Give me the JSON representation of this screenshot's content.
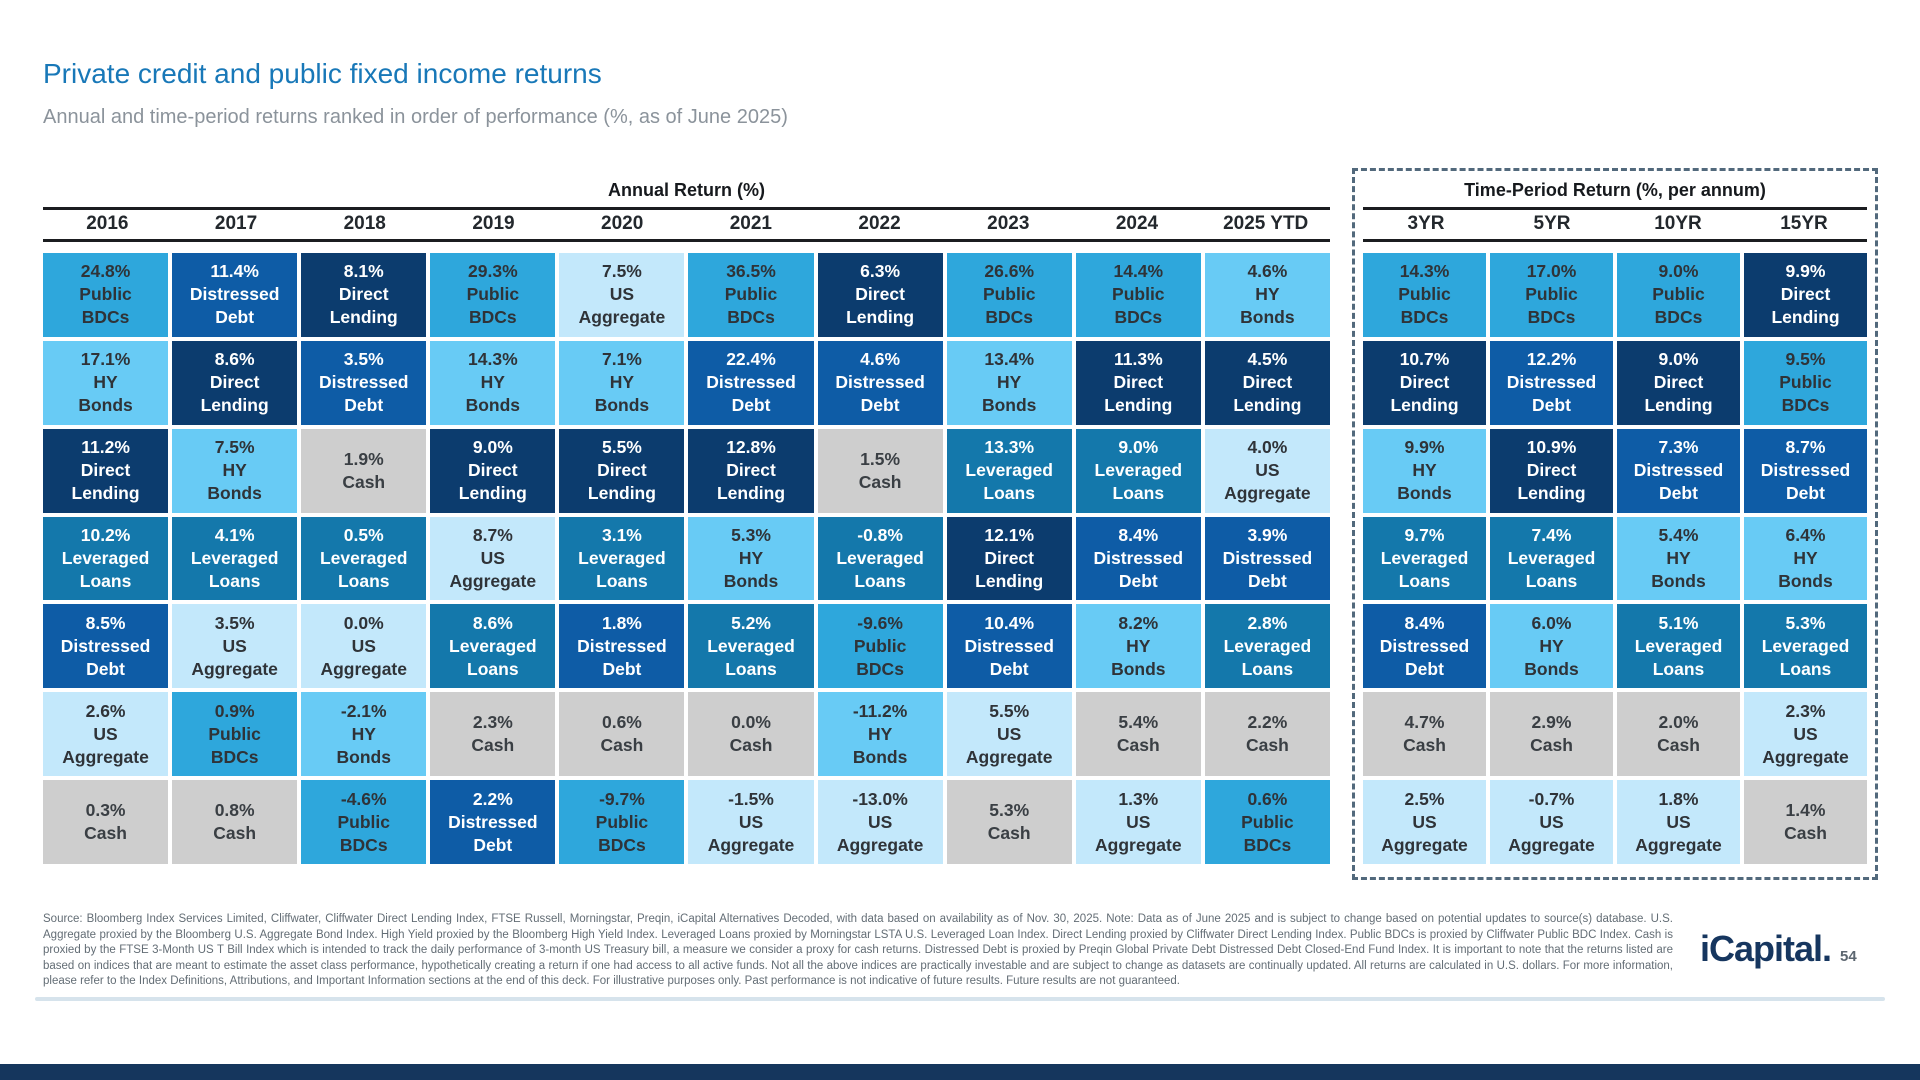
{
  "slide": {
    "title": "Private credit and public fixed income returns",
    "subtitle": "Annual and time-period returns ranked in order of performance (%, as of June 2025)",
    "logo_text": "iCapital",
    "logo_suffix": ".",
    "page_number": "54",
    "footer": "Source: Bloomberg Index Services Limited, Cliffwater, Cliffwater Direct Lending Index, FTSE Russell, Morningstar, Preqin, iCapital Alternatives Decoded, with data based on availability as of Nov. 30, 2025. Note: Data as of June 2025 and is subject to change based on potential updates to source(s) database. U.S. Aggregate proxied by the Bloomberg U.S. Aggregate Bond Index. High Yield proxied by the Bloomberg High Yield Index. Leveraged Loans proxied by Morningstar LSTA U.S. Leveraged Loan Index. Direct Lending proxied by Cliffwater Direct Lending Index. Public BDCs is proxied by Cliffwater Public BDC Index. Cash is proxied by the FTSE 3-Month US T Bill Index which is intended to track the daily performance of 3-month US Treasury bill, a measure we consider a proxy for cash returns. Distressed Debt is proxied by Preqin Global Private Debt Distressed Debt Closed-End Fund Index. It is important to note that the returns listed are based on indices that are meant to estimate the asset class performance, hypothetically creating a return if one had access to all active funds. Not all the above indices are practically investable and are subject to change as datasets are continually updated. All returns are calculated in U.S. dollars. For more information, please refer to the Index Definitions, Attributions, and Important Information sections at the end of this deck. For illustrative purposes only. Past performance is not indicative of future results. Future results are not guaranteed."
  },
  "colors": {
    "title_blue": "#1878b8",
    "subtitle_gray": "#8b939b",
    "rule_black": "#1b1d20",
    "dashed_border": "#52697c",
    "navy_bar": "#15365d",
    "logo_navy": "#16365f"
  },
  "asset_classes": {
    "public_bdcs": {
      "name": "Public BDCs",
      "label_lines": [
        "Public",
        "BDCs"
      ],
      "bg": "#2ea7dc",
      "text": "#2f3338"
    },
    "distressed_debt": {
      "name": "Distressed Debt",
      "label_lines": [
        "Distressed",
        "Debt"
      ],
      "bg": "#0e5ca6",
      "text": "#ffffff"
    },
    "direct_lending": {
      "name": "Direct Lending",
      "label_lines": [
        "Direct",
        "Lending"
      ],
      "bg": "#0c3c6e",
      "text": "#ffffff"
    },
    "hy_bonds": {
      "name": "HY Bonds",
      "label_lines": [
        "HY",
        "Bonds"
      ],
      "bg": "#68cbf5",
      "text": "#2f3338"
    },
    "leveraged_loans": {
      "name": "Leveraged Loans",
      "label_lines": [
        "Leveraged",
        "Loans"
      ],
      "bg": "#1478ab",
      "text": "#ffffff"
    },
    "us_aggregate": {
      "name": "US Aggregate",
      "label_lines": [
        "US",
        "Aggregate"
      ],
      "bg": "#c3e8fb",
      "text": "#2f3338"
    },
    "cash": {
      "name": "Cash",
      "label_lines": [
        "Cash"
      ],
      "bg": "#cecece",
      "text": "#3a3f44"
    }
  },
  "chart_data": {
    "type": "table",
    "title": "Private credit and public fixed income returns",
    "subtitle": "Annual and time-period returns ranked in order of performance (%, as of June 2025)",
    "layout_note": "Quilt chart: each column ranks asset-class returns best-to-worst, cells colored by asset class",
    "sections": [
      {
        "header": "Annual Return (%)",
        "columns": [
          {
            "label": "2016",
            "cells": [
              {
                "value": "24.8%",
                "asset": "public_bdcs"
              },
              {
                "value": "17.1%",
                "asset": "hy_bonds"
              },
              {
                "value": "11.2%",
                "asset": "direct_lending"
              },
              {
                "value": "10.2%",
                "asset": "leveraged_loans"
              },
              {
                "value": "8.5%",
                "asset": "distressed_debt"
              },
              {
                "value": "2.6%",
                "asset": "us_aggregate"
              },
              {
                "value": "0.3%",
                "asset": "cash"
              }
            ]
          },
          {
            "label": "2017",
            "cells": [
              {
                "value": "11.4%",
                "asset": "distressed_debt"
              },
              {
                "value": "8.6%",
                "asset": "direct_lending"
              },
              {
                "value": "7.5%",
                "asset": "hy_bonds"
              },
              {
                "value": "4.1%",
                "asset": "leveraged_loans"
              },
              {
                "value": "3.5%",
                "asset": "us_aggregate"
              },
              {
                "value": "0.9%",
                "asset": "public_bdcs"
              },
              {
                "value": "0.8%",
                "asset": "cash"
              }
            ]
          },
          {
            "label": "2018",
            "cells": [
              {
                "value": "8.1%",
                "asset": "direct_lending"
              },
              {
                "value": "3.5%",
                "asset": "distressed_debt"
              },
              {
                "value": "1.9%",
                "asset": "cash"
              },
              {
                "value": "0.5%",
                "asset": "leveraged_loans"
              },
              {
                "value": "0.0%",
                "asset": "us_aggregate"
              },
              {
                "value": "-2.1%",
                "asset": "hy_bonds"
              },
              {
                "value": "-4.6%",
                "asset": "public_bdcs"
              }
            ]
          },
          {
            "label": "2019",
            "cells": [
              {
                "value": "29.3%",
                "asset": "public_bdcs"
              },
              {
                "value": "14.3%",
                "asset": "hy_bonds"
              },
              {
                "value": "9.0%",
                "asset": "direct_lending"
              },
              {
                "value": "8.7%",
                "asset": "us_aggregate"
              },
              {
                "value": "8.6%",
                "asset": "leveraged_loans"
              },
              {
                "value": "2.3%",
                "asset": "cash"
              },
              {
                "value": "2.2%",
                "asset": "distressed_debt"
              }
            ]
          },
          {
            "label": "2020",
            "cells": [
              {
                "value": "7.5%",
                "asset": "us_aggregate"
              },
              {
                "value": "7.1%",
                "asset": "hy_bonds"
              },
              {
                "value": "5.5%",
                "asset": "direct_lending"
              },
              {
                "value": "3.1%",
                "asset": "leveraged_loans"
              },
              {
                "value": "1.8%",
                "asset": "distressed_debt"
              },
              {
                "value": "0.6%",
                "asset": "cash"
              },
              {
                "value": "-9.7%",
                "asset": "public_bdcs"
              }
            ]
          },
          {
            "label": "2021",
            "cells": [
              {
                "value": "36.5%",
                "asset": "public_bdcs"
              },
              {
                "value": "22.4%",
                "asset": "distressed_debt"
              },
              {
                "value": "12.8%",
                "asset": "direct_lending"
              },
              {
                "value": "5.3%",
                "asset": "hy_bonds"
              },
              {
                "value": "5.2%",
                "asset": "leveraged_loans"
              },
              {
                "value": "0.0%",
                "asset": "cash"
              },
              {
                "value": "-1.5%",
                "asset": "us_aggregate"
              }
            ]
          },
          {
            "label": "2022",
            "cells": [
              {
                "value": "6.3%",
                "asset": "direct_lending"
              },
              {
                "value": "4.6%",
                "asset": "distressed_debt"
              },
              {
                "value": "1.5%",
                "asset": "cash"
              },
              {
                "value": "-0.8%",
                "asset": "leveraged_loans"
              },
              {
                "value": "-9.6%",
                "asset": "public_bdcs"
              },
              {
                "value": "-11.2%",
                "asset": "hy_bonds"
              },
              {
                "value": "-13.0%",
                "asset": "us_aggregate"
              }
            ]
          },
          {
            "label": "2023",
            "cells": [
              {
                "value": "26.6%",
                "asset": "public_bdcs"
              },
              {
                "value": "13.4%",
                "asset": "hy_bonds"
              },
              {
                "value": "13.3%",
                "asset": "leveraged_loans"
              },
              {
                "value": "12.1%",
                "asset": "direct_lending"
              },
              {
                "value": "10.4%",
                "asset": "distressed_debt"
              },
              {
                "value": "5.5%",
                "asset": "us_aggregate"
              },
              {
                "value": "5.3%",
                "asset": "cash"
              }
            ]
          },
          {
            "label": "2024",
            "cells": [
              {
                "value": "14.4%",
                "asset": "public_bdcs"
              },
              {
                "value": "11.3%",
                "asset": "direct_lending"
              },
              {
                "value": "9.0%",
                "asset": "leveraged_loans"
              },
              {
                "value": "8.4%",
                "asset": "distressed_debt"
              },
              {
                "value": "8.2%",
                "asset": "hy_bonds"
              },
              {
                "value": "5.4%",
                "asset": "cash"
              },
              {
                "value": "1.3%",
                "asset": "us_aggregate"
              }
            ]
          },
          {
            "label": "2025 YTD",
            "cells": [
              {
                "value": "4.6%",
                "asset": "hy_bonds"
              },
              {
                "value": "4.5%",
                "asset": "direct_lending"
              },
              {
                "value": "4.0%",
                "asset": "us_aggregate"
              },
              {
                "value": "3.9%",
                "asset": "distressed_debt"
              },
              {
                "value": "2.8%",
                "asset": "leveraged_loans"
              },
              {
                "value": "2.2%",
                "asset": "cash"
              },
              {
                "value": "0.6%",
                "asset": "public_bdcs"
              }
            ]
          }
        ]
      },
      {
        "header": "Time-Period Return (%, per annum)",
        "columns": [
          {
            "label": "3YR",
            "cells": [
              {
                "value": "14.3%",
                "asset": "public_bdcs"
              },
              {
                "value": "10.7%",
                "asset": "direct_lending"
              },
              {
                "value": "9.9%",
                "asset": "hy_bonds"
              },
              {
                "value": "9.7%",
                "asset": "leveraged_loans"
              },
              {
                "value": "8.4%",
                "asset": "distressed_debt"
              },
              {
                "value": "4.7%",
                "asset": "cash"
              },
              {
                "value": "2.5%",
                "asset": "us_aggregate"
              }
            ]
          },
          {
            "label": "5YR",
            "cells": [
              {
                "value": "17.0%",
                "asset": "public_bdcs"
              },
              {
                "value": "12.2%",
                "asset": "distressed_debt"
              },
              {
                "value": "10.9%",
                "asset": "direct_lending"
              },
              {
                "value": "7.4%",
                "asset": "leveraged_loans"
              },
              {
                "value": "6.0%",
                "asset": "hy_bonds"
              },
              {
                "value": "2.9%",
                "asset": "cash"
              },
              {
                "value": "-0.7%",
                "asset": "us_aggregate"
              }
            ]
          },
          {
            "label": "10YR",
            "cells": [
              {
                "value": "9.0%",
                "asset": "public_bdcs"
              },
              {
                "value": "9.0%",
                "asset": "direct_lending"
              },
              {
                "value": "7.3%",
                "asset": "distressed_debt"
              },
              {
                "value": "5.4%",
                "asset": "hy_bonds"
              },
              {
                "value": "5.1%",
                "asset": "leveraged_loans"
              },
              {
                "value": "2.0%",
                "asset": "cash"
              },
              {
                "value": "1.8%",
                "asset": "us_aggregate"
              }
            ]
          },
          {
            "label": "15YR",
            "cells": [
              {
                "value": "9.9%",
                "asset": "direct_lending"
              },
              {
                "value": "9.5%",
                "asset": "public_bdcs"
              },
              {
                "value": "8.7%",
                "asset": "distressed_debt"
              },
              {
                "value": "6.4%",
                "asset": "hy_bonds"
              },
              {
                "value": "5.3%",
                "asset": "leveraged_loans"
              },
              {
                "value": "2.3%",
                "asset": "us_aggregate"
              },
              {
                "value": "1.4%",
                "asset": "cash"
              }
            ]
          }
        ]
      }
    ]
  }
}
